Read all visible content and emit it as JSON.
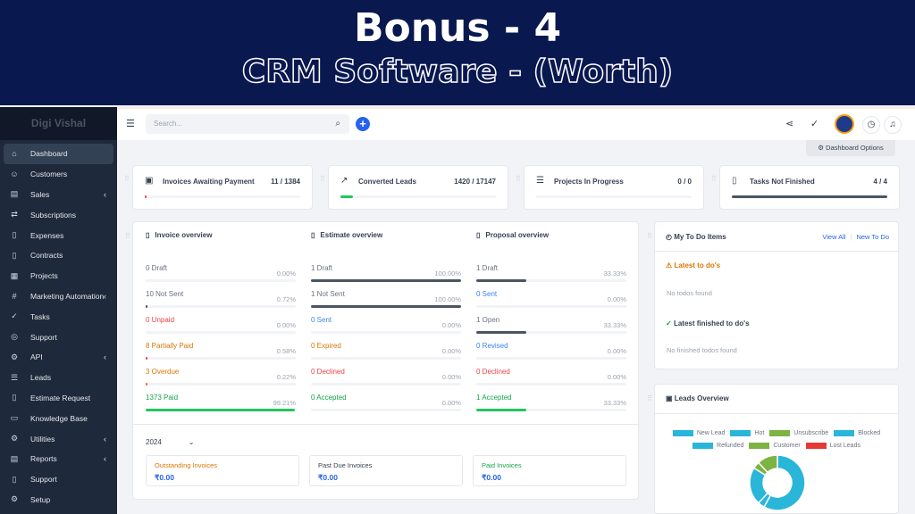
{
  "banner": {
    "title": "Bonus - 4",
    "subtitle": "CRM Software - (Worth)"
  },
  "sidebar": {
    "brand": "Digi Vishal",
    "items": [
      {
        "label": "Dashboard",
        "icon": "home-icon",
        "glyph": "⌂",
        "active": true
      },
      {
        "label": "Customers",
        "icon": "user-icon",
        "glyph": "☺"
      },
      {
        "label": "Sales",
        "icon": "receipt-icon",
        "glyph": "▤",
        "chev": "‹"
      },
      {
        "label": "Subscriptions",
        "icon": "repeat-icon",
        "glyph": "⇄"
      },
      {
        "label": "Expenses",
        "icon": "file-icon",
        "glyph": "▯"
      },
      {
        "label": "Contracts",
        "icon": "document-icon",
        "glyph": "▯"
      },
      {
        "label": "Projects",
        "icon": "chart-icon",
        "glyph": "▦"
      },
      {
        "label": "Marketing Automation",
        "icon": "hash-icon",
        "glyph": "#",
        "chev": "‹"
      },
      {
        "label": "Tasks",
        "icon": "check-circle-icon",
        "glyph": "✓"
      },
      {
        "label": "Support",
        "icon": "lifebuoy-icon",
        "glyph": "◎"
      },
      {
        "label": "API",
        "icon": "gear-icon",
        "glyph": "⚙",
        "chev": "‹"
      },
      {
        "label": "Leads",
        "icon": "leads-icon",
        "glyph": "☰"
      },
      {
        "label": "Estimate Request",
        "icon": "file-icon",
        "glyph": "▯"
      },
      {
        "label": "Knowledge Base",
        "icon": "folder-icon",
        "glyph": "▭"
      },
      {
        "label": "Utilities",
        "icon": "cog-icon",
        "glyph": "⚙",
        "chev": "‹"
      },
      {
        "label": "Reports",
        "icon": "report-icon",
        "glyph": "▤",
        "chev": "‹"
      },
      {
        "label": "Support",
        "icon": "file-icon",
        "glyph": "▯"
      },
      {
        "label": "Setup",
        "icon": "gear-icon",
        "glyph": "⚙"
      }
    ]
  },
  "header": {
    "search_placeholder": "Search..."
  },
  "dashboard_options": "Dashboard Options",
  "stats": [
    {
      "label": "Invoices Awaiting Payment",
      "value": "11 / 1384",
      "progress": 0.008,
      "color": "#ef4444",
      "glyph": "▣"
    },
    {
      "label": "Converted Leads",
      "value": "1420 / 17147",
      "progress": 0.083,
      "color": "#22c55e",
      "glyph": "↗"
    },
    {
      "label": "Projects In Progress",
      "value": "0 / 0",
      "progress": 0,
      "color": "#4b5563",
      "glyph": "☰"
    },
    {
      "label": "Tasks Not Finished",
      "value": "4 / 4",
      "progress": 1,
      "color": "#4b5563",
      "glyph": "▯"
    }
  ],
  "overview": [
    {
      "title": "Invoice overview",
      "rows": [
        {
          "label": "0 Draft",
          "pct": "0.00%",
          "v": 0,
          "color": "#6b7280",
          "bar": "#4b5563"
        },
        {
          "label": "10 Not Sent",
          "pct": "0.72%",
          "v": 0.72,
          "color": "#6b7280",
          "bar": "#4b5563"
        },
        {
          "label": "0 Unpaid",
          "pct": "0.00%",
          "v": 0,
          "color": "#ef4444",
          "bar": "#ef4444"
        },
        {
          "label": "8 Partially Paid",
          "pct": "0.58%",
          "v": 0.58,
          "color": "#d97706",
          "bar": "#ef4444"
        },
        {
          "label": "3 Overdue",
          "pct": "0.22%",
          "v": 0.22,
          "color": "#d97706",
          "bar": "#d97706"
        },
        {
          "label": "1373 Paid",
          "pct": "99.21%",
          "v": 99.21,
          "color": "#16a34a",
          "bar": "#22c55e"
        }
      ]
    },
    {
      "title": "Estimate overview",
      "rows": [
        {
          "label": "1 Draft",
          "pct": "100.00%",
          "v": 100,
          "color": "#6b7280",
          "bar": "#4b5563"
        },
        {
          "label": "1 Not Sent",
          "pct": "100.00%",
          "v": 100,
          "color": "#6b7280",
          "bar": "#4b5563"
        },
        {
          "label": "0 Sent",
          "pct": "0.00%",
          "v": 0,
          "color": "#3b82f6",
          "bar": "#3b82f6"
        },
        {
          "label": "0 Expired",
          "pct": "0.00%",
          "v": 0,
          "color": "#d97706",
          "bar": "#d97706"
        },
        {
          "label": "0 Declined",
          "pct": "0.00%",
          "v": 0,
          "color": "#ef4444",
          "bar": "#ef4444"
        },
        {
          "label": "0 Accepted",
          "pct": "0.00%",
          "v": 0,
          "color": "#16a34a",
          "bar": "#22c55e"
        }
      ]
    },
    {
      "title": "Proposal overview",
      "rows": [
        {
          "label": "1 Draft",
          "pct": "33.33%",
          "v": 33.33,
          "color": "#6b7280",
          "bar": "#4b5563"
        },
        {
          "label": "0 Sent",
          "pct": "0.00%",
          "v": 0,
          "color": "#3b82f6",
          "bar": "#3b82f6"
        },
        {
          "label": "1 Open",
          "pct": "33.33%",
          "v": 33.33,
          "color": "#6b7280",
          "bar": "#4b5563"
        },
        {
          "label": "0 Revised",
          "pct": "0.00%",
          "v": 0,
          "color": "#3b82f6",
          "bar": "#3b82f6"
        },
        {
          "label": "0 Declined",
          "pct": "0.00%",
          "v": 0,
          "color": "#ef4444",
          "bar": "#ef4444"
        },
        {
          "label": "1 Accepted",
          "pct": "33.33%",
          "v": 33.33,
          "color": "#16a34a",
          "bar": "#22c55e"
        }
      ]
    }
  ],
  "year": "2024",
  "summary": [
    {
      "label": "Outstanding Invoices",
      "value": "₹0.00",
      "color": "#d97706"
    },
    {
      "label": "Past Due Invoices",
      "value": "₹0.00",
      "color": "#374151"
    },
    {
      "label": "Paid Invoices",
      "value": "₹0.00",
      "color": "#16a34a"
    }
  ],
  "todo": {
    "title": "My To Do Items",
    "view_all": "View All",
    "new": "New To Do",
    "latest": "Latest to do's",
    "none": "No todos found",
    "finished": "Latest finished to do's",
    "none_finished": "No finished todos found"
  },
  "chart_data": {
    "type": "pie",
    "title": "Leads Overview",
    "categories": [
      "New Lead",
      "Hot",
      "Unsubscribe",
      "Blocked",
      "Refunded",
      "Customer",
      "Lost Leads"
    ],
    "colors": [
      "#29b6d9",
      "#29b6d9",
      "#7cb342",
      "#29b6d9",
      "#29b6d9",
      "#7cb342",
      "#e53935"
    ],
    "values": [
      58,
      4,
      4,
      22,
      0,
      12,
      0
    ]
  }
}
